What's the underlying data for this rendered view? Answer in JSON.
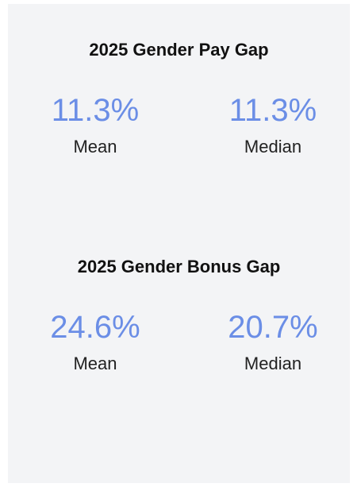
{
  "sections": [
    {
      "title": "2025 Gender Pay Gap",
      "stats": [
        {
          "value": "11.3%",
          "label": "Mean"
        },
        {
          "value": "11.3%",
          "label": "Median"
        }
      ]
    },
    {
      "title": "2025 Gender Bonus Gap",
      "stats": [
        {
          "value": "24.6%",
          "label": "Mean"
        },
        {
          "value": "20.7%",
          "label": "Median"
        }
      ]
    }
  ]
}
